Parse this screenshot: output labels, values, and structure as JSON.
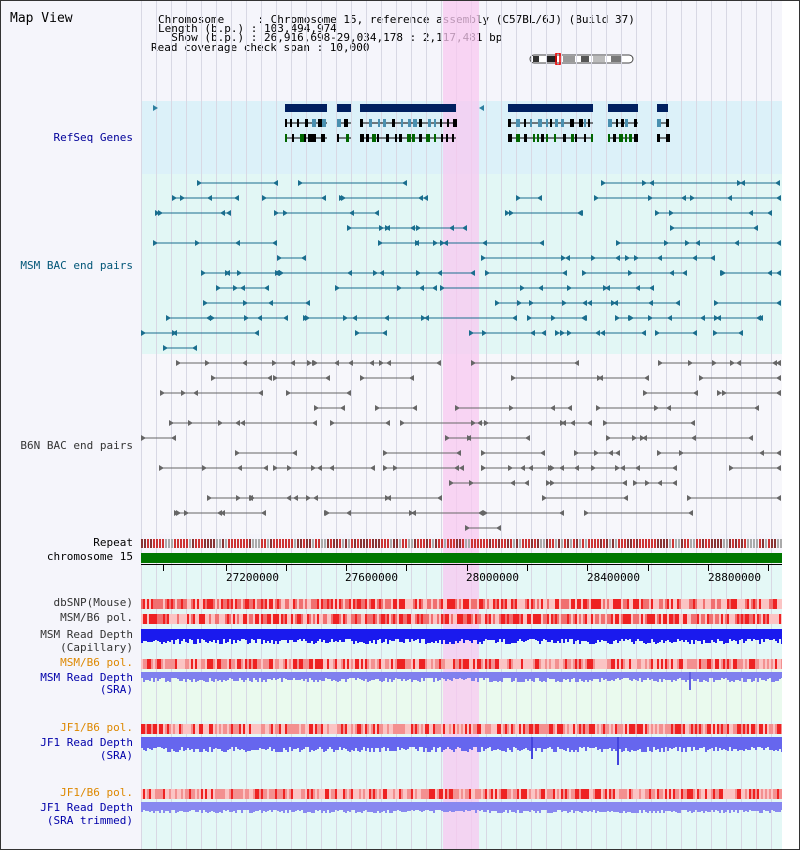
{
  "header": {
    "title": "Map View",
    "line1": "Chromosome     : Chromosome 15, reference assembly (C57BL/6J) (Build 37)",
    "line2": "Length (b.p.) : 103,494,974",
    "line3": "  Show (b.p.) : 26,916,698-29,034,178 : 2,117,481 bp",
    "line4": "Read coverage check span : 10,000"
  },
  "tracks": {
    "refseq": "RefSeq Genes",
    "msm_bac": "MSM BAC end pairs",
    "b6n_bac": "B6N BAC end pairs",
    "repeat": "Repeat",
    "chromosome": "chromosome 15",
    "dbsnp": "dbSNP(Mouse)",
    "msm_pol1": "MSM/B6 pol.",
    "msm_depth_cap_1": "MSM Read Depth",
    "msm_depth_cap_2": "(Capillary)",
    "msm_pol2": "MSM/B6 pol.",
    "msm_depth_sra_1": "MSM Read Depth",
    "msm_depth_sra_2": "(SRA)",
    "jf1_pol1": "JF1/B6 pol.",
    "jf1_depth_1": "JF1 Read Depth",
    "jf1_depth_2": "(SRA)",
    "jf1_pol2": "JF1/B6 pol.",
    "jf1_trim_1": "JF1 Read Depth",
    "jf1_trim_2": "(SRA trimmed)"
  },
  "axis": {
    "ticks": [
      "27200000",
      "27600000",
      "28000000",
      "28400000",
      "28800000"
    ]
  },
  "colors": {
    "refseq_bg": "#dcf1f9",
    "bac_bg": "#e2f7f5",
    "highlight": "#f8d8f0",
    "msm_label": "#005577",
    "refseq_label": "#000099",
    "orange_label": "#dd8800",
    "blue_label": "#0000aa",
    "chrom_bar": "#007700"
  }
}
